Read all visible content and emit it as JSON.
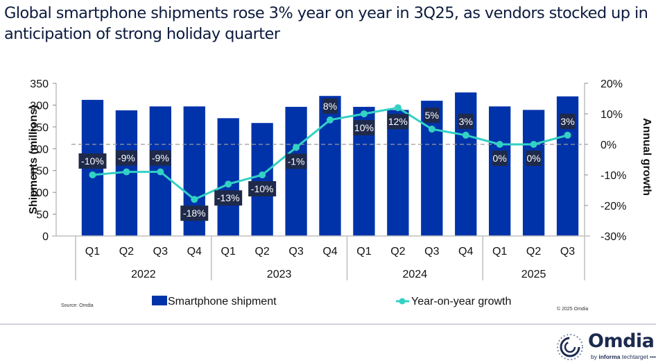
{
  "header": {
    "title": "Global smartphone shipments rose 3% year on year in 3Q25, as vendors stocked up in anticipation of strong holiday quarter"
  },
  "colors": {
    "bar": "#0033aa",
    "line": "#33d1c4",
    "label_bg": "#1f2a4a",
    "zero_line": "#9a9a9a",
    "axis": "#bfbfbf"
  },
  "chart_data": {
    "type": "bar",
    "title": "Global smartphone shipments rose 3% year on year in 3Q25, as vendors stocked up in anticipation of strong holiday quarter",
    "categories": [
      "Q1",
      "Q2",
      "Q3",
      "Q4",
      "Q1",
      "Q2",
      "Q3",
      "Q4",
      "Q1",
      "Q2",
      "Q3",
      "Q4",
      "Q1",
      "Q2",
      "Q3"
    ],
    "groups": [
      {
        "label": "2022",
        "count": 4
      },
      {
        "label": "2023",
        "count": 4
      },
      {
        "label": "2024",
        "count": 4
      },
      {
        "label": "2025",
        "count": 3
      }
    ],
    "series": [
      {
        "name": "Smartphone shipment",
        "type": "bar",
        "axis": "left",
        "values": [
          312,
          288,
          297,
          297,
          270,
          259,
          296,
          321,
          296,
          289,
          310,
          329,
          297,
          289,
          320
        ]
      },
      {
        "name": "Year-on-year growth",
        "type": "line",
        "axis": "right",
        "values": [
          -10,
          -9,
          -9,
          -18,
          -13,
          -10,
          -1,
          8,
          10,
          12,
          5,
          3,
          0,
          0,
          3
        ],
        "labels": [
          "-10%",
          "-9%",
          "-9%",
          "-18%",
          "-13%",
          "-10%",
          "-1%",
          "8%",
          "10%",
          "12%",
          "5%",
          "3%",
          "0%",
          "0%",
          "3%"
        ],
        "label_position": [
          "above",
          "above",
          "above",
          "below",
          "below",
          "below",
          "below",
          "above",
          "below",
          "below",
          "above",
          "above",
          "below",
          "below",
          "above"
        ]
      }
    ],
    "ylabel": "Shipments (millions)",
    "ylim": [
      0,
      350
    ],
    "yticks": [
      0,
      50,
      100,
      150,
      200,
      250,
      300,
      350
    ],
    "ytick_labels": [
      "0",
      "50",
      "100",
      "150",
      "200",
      "250",
      "300",
      "350"
    ],
    "y2label": "Annual growth",
    "y2lim": [
      -30,
      20
    ],
    "y2ticks": [
      -30,
      -20,
      -10,
      0,
      10,
      20
    ],
    "y2tick_labels": [
      "-30%",
      "-20%",
      "-10%",
      "0%",
      "10%",
      "20%"
    ],
    "y2_reference_line": 0,
    "grid": false,
    "legend": {
      "placement": "bottom",
      "entries": [
        "Smartphone shipment",
        "Year-on-year growth"
      ]
    }
  },
  "footer": {
    "source": "Source: Omdia",
    "copyright": "© 2025 Omdia",
    "logo_name": "Omdia",
    "logo_sub_prefix": "by ",
    "logo_sub_bold": "informa",
    "logo_sub_rest": " techtarget •••"
  }
}
